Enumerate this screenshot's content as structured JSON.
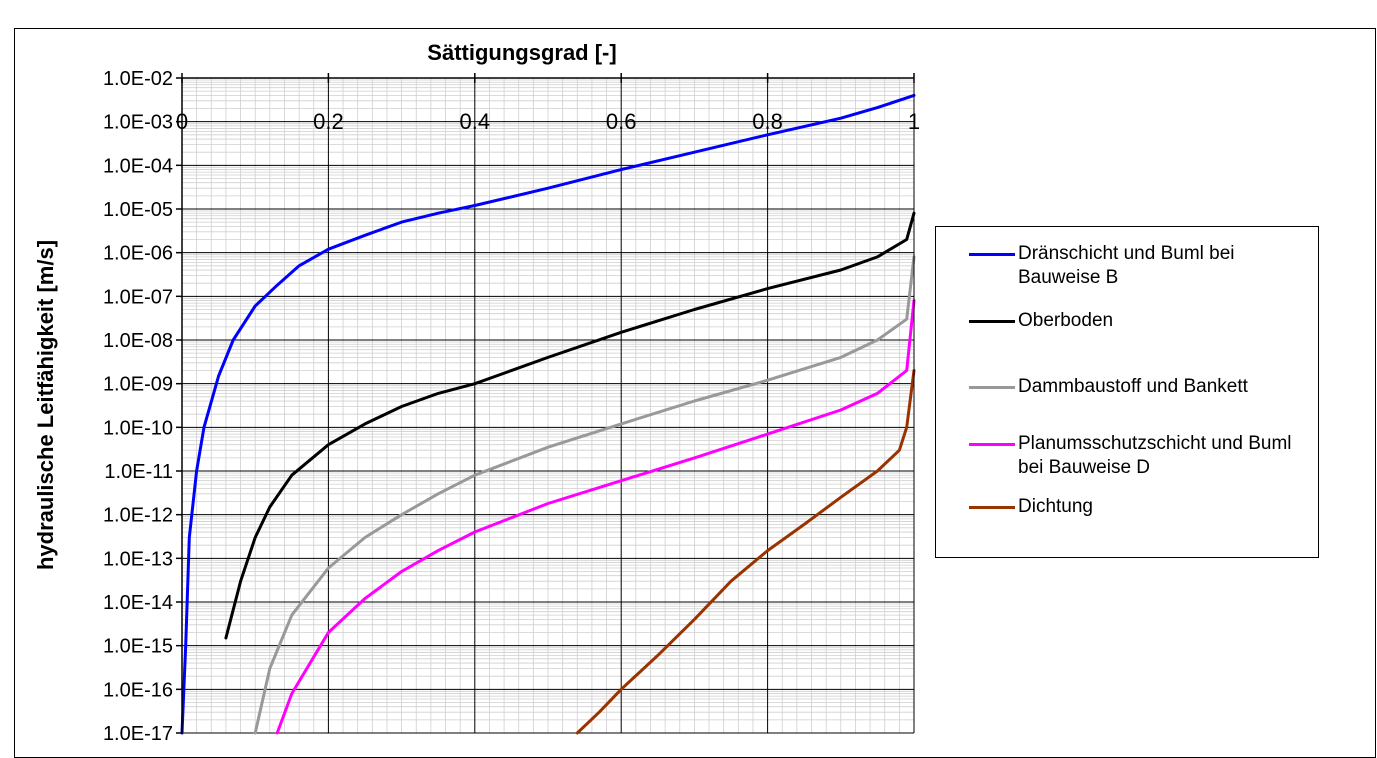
{
  "chart_data": {
    "type": "line",
    "title": "Sättigungsgrad [-]",
    "ylabel": "hydraulische Leitfähigkeit [m/s]",
    "xlabel": "",
    "x_ticks": [
      "0",
      "0.2",
      "0.4",
      "0.6",
      "0.8",
      "1"
    ],
    "y_ticks": [
      "1.0E-02",
      "1.0E-03",
      "1.0E-04",
      "1.0E-05",
      "1.0E-06",
      "1.0E-07",
      "1.0E-08",
      "1.0E-09",
      "1.0E-10",
      "1.0E-11",
      "1.0E-12",
      "1.0E-13",
      "1.0E-14",
      "1.0E-15",
      "1.0E-16",
      "1.0E-17"
    ],
    "xlim": [
      0,
      1
    ],
    "ylim": [
      1e-17,
      0.01
    ],
    "y_scale": "log",
    "x_axis_position": "top",
    "grid": true,
    "legend": "right",
    "series": [
      {
        "name": "Dränschicht und Buml bei Bauweise B",
        "color": "#0000ff",
        "x": [
          0.0,
          0.005,
          0.01,
          0.02,
          0.03,
          0.05,
          0.07,
          0.1,
          0.13,
          0.16,
          0.2,
          0.25,
          0.3,
          0.35,
          0.4,
          0.5,
          0.6,
          0.7,
          0.8,
          0.9,
          0.95,
          1.0
        ],
        "y": [
          1e-17,
          1e-15,
          3e-13,
          1e-11,
          1e-10,
          1.5e-09,
          1e-08,
          6e-08,
          1.8e-07,
          5e-07,
          1.2e-06,
          2.5e-06,
          5e-06,
          8e-06,
          1.2e-05,
          3e-05,
          8e-05,
          0.0002,
          0.0005,
          0.0012,
          0.0021,
          0.004
        ]
      },
      {
        "name": "Oberboden",
        "color": "#000000",
        "x": [
          0.06,
          0.08,
          0.1,
          0.12,
          0.15,
          0.2,
          0.25,
          0.3,
          0.35,
          0.4,
          0.5,
          0.6,
          0.7,
          0.8,
          0.9,
          0.95,
          0.99,
          1.0
        ],
        "y": [
          1.5e-15,
          3e-14,
          3e-13,
          1.5e-12,
          8e-12,
          4e-11,
          1.2e-10,
          3e-10,
          6e-10,
          1e-09,
          4e-09,
          1.5e-08,
          5e-08,
          1.5e-07,
          4e-07,
          8e-07,
          2e-06,
          8e-06
        ]
      },
      {
        "name": "Dammbaustoff und Bankett",
        "color": "#999999",
        "x": [
          0.1,
          0.12,
          0.15,
          0.2,
          0.25,
          0.3,
          0.35,
          0.4,
          0.5,
          0.6,
          0.7,
          0.8,
          0.9,
          0.95,
          0.99,
          1.0
        ],
        "y": [
          1e-17,
          3e-16,
          5e-15,
          6e-14,
          3e-13,
          1e-12,
          3e-12,
          8e-12,
          3.5e-11,
          1.2e-10,
          4e-10,
          1.2e-09,
          4e-09,
          1e-08,
          3e-08,
          8e-07
        ]
      },
      {
        "name": "Planumsschutzschicht und Buml bei Bauweise D",
        "color": "#ff00ff",
        "x": [
          0.13,
          0.15,
          0.2,
          0.25,
          0.3,
          0.35,
          0.4,
          0.5,
          0.6,
          0.7,
          0.8,
          0.9,
          0.95,
          0.99,
          1.0
        ],
        "y": [
          1e-17,
          8e-17,
          2e-15,
          1.2e-14,
          5e-14,
          1.5e-13,
          4e-13,
          1.8e-12,
          6e-12,
          2e-11,
          7e-11,
          2.5e-10,
          6e-10,
          2e-09,
          8e-08
        ]
      },
      {
        "name": "Dichtung",
        "color": "#993300",
        "x": [
          0.54,
          0.57,
          0.6,
          0.65,
          0.7,
          0.75,
          0.8,
          0.85,
          0.9,
          0.95,
          0.98,
          0.99,
          1.0
        ],
        "y": [
          1e-17,
          3e-17,
          1e-16,
          6e-16,
          4e-15,
          3e-14,
          1.5e-13,
          6e-13,
          2.5e-12,
          1e-11,
          3e-11,
          1e-10,
          2e-09
        ]
      }
    ]
  }
}
